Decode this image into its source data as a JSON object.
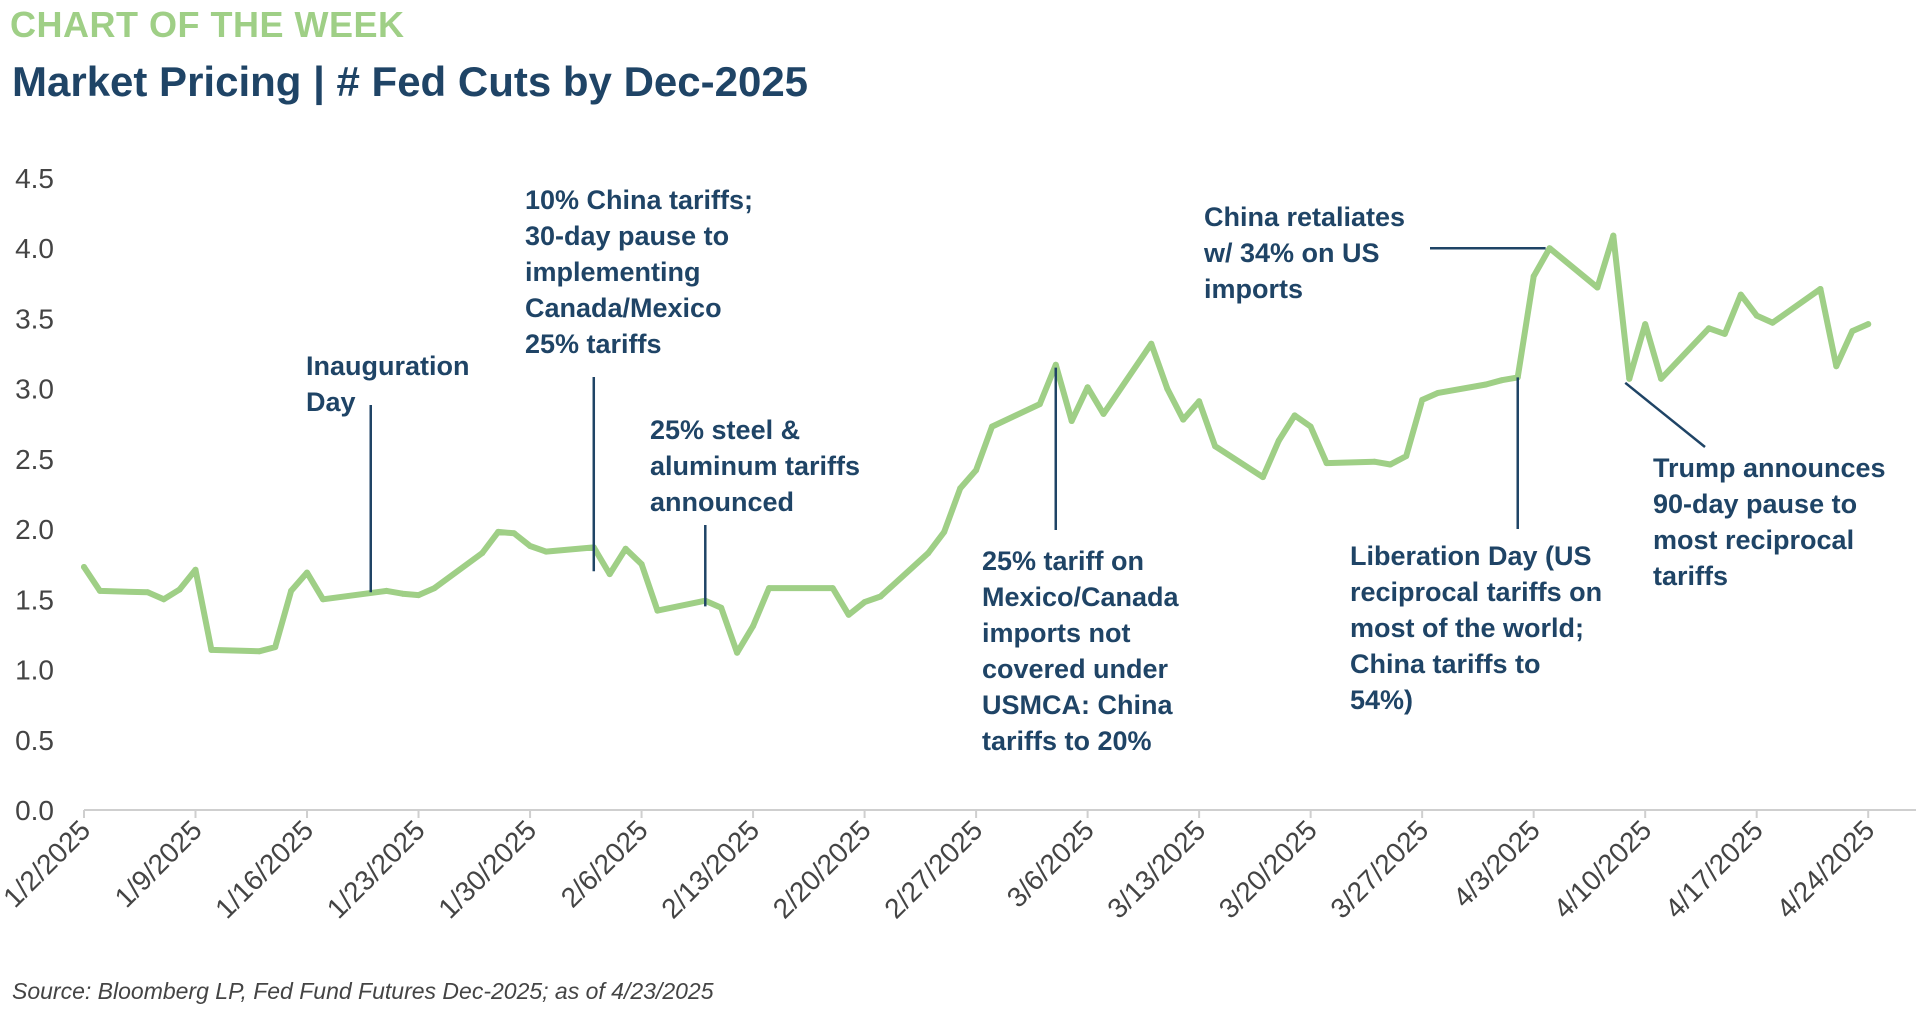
{
  "header": {
    "kicker": "CHART OF THE WEEK",
    "title": "Market Pricing | # Fed Cuts by Dec-2025"
  },
  "footer": {
    "source": "Source: Bloomberg LP, Fed Fund Futures Dec-2025; as of 4/23/2025"
  },
  "colors": {
    "line": "#9fcf86",
    "annotation": "#1f4466",
    "axis": "#cfcfcf"
  },
  "chart_data": {
    "type": "line",
    "title": "Market Pricing | # Fed Cuts by Dec-2025",
    "xlabel": "",
    "ylabel": "",
    "ylim": [
      0,
      4.5
    ],
    "yticks": [
      "0.0",
      "0.5",
      "1.0",
      "1.5",
      "2.0",
      "2.5",
      "3.0",
      "3.5",
      "4.0",
      "4.5"
    ],
    "xlim": [
      "2025-01-02",
      "2025-04-27"
    ],
    "xticks": [
      "1/2/2025",
      "1/9/2025",
      "1/16/2025",
      "1/23/2025",
      "1/30/2025",
      "2/6/2025",
      "2/13/2025",
      "2/20/2025",
      "2/27/2025",
      "3/6/2025",
      "3/13/2025",
      "3/20/2025",
      "3/27/2025",
      "4/3/2025",
      "4/10/2025",
      "4/17/2025",
      "4/24/2025"
    ],
    "grid": false,
    "legend": "none",
    "series": [
      {
        "points": [
          [
            "2025-01-02",
            1.73
          ],
          [
            "2025-01-03",
            1.56
          ],
          [
            "2025-01-06",
            1.55
          ],
          [
            "2025-01-07",
            1.5
          ],
          [
            "2025-01-08",
            1.57
          ],
          [
            "2025-01-09",
            1.71
          ],
          [
            "2025-01-10",
            1.14
          ],
          [
            "2025-01-13",
            1.13
          ],
          [
            "2025-01-14",
            1.16
          ],
          [
            "2025-01-15",
            1.56
          ],
          [
            "2025-01-16",
            1.69
          ],
          [
            "2025-01-17",
            1.5
          ],
          [
            "2025-01-21",
            1.56
          ],
          [
            "2025-01-22",
            1.54
          ],
          [
            "2025-01-23",
            1.53
          ],
          [
            "2025-01-24",
            1.58
          ],
          [
            "2025-01-27",
            1.83
          ],
          [
            "2025-01-28",
            1.98
          ],
          [
            "2025-01-29",
            1.97
          ],
          [
            "2025-01-30",
            1.88
          ],
          [
            "2025-01-31",
            1.84
          ],
          [
            "2025-02-03",
            1.87
          ],
          [
            "2025-02-04",
            1.68
          ],
          [
            "2025-02-05",
            1.86
          ],
          [
            "2025-02-06",
            1.75
          ],
          [
            "2025-02-07",
            1.42
          ],
          [
            "2025-02-10",
            1.49
          ],
          [
            "2025-02-11",
            1.44
          ],
          [
            "2025-02-12",
            1.12
          ],
          [
            "2025-02-13",
            1.31
          ],
          [
            "2025-02-14",
            1.58
          ],
          [
            "2025-02-18",
            1.58
          ],
          [
            "2025-02-19",
            1.39
          ],
          [
            "2025-02-20",
            1.48
          ],
          [
            "2025-02-21",
            1.52
          ],
          [
            "2025-02-24",
            1.83
          ],
          [
            "2025-02-25",
            1.98
          ],
          [
            "2025-02-26",
            2.29
          ],
          [
            "2025-02-27",
            2.42
          ],
          [
            "2025-02-28",
            2.73
          ],
          [
            "2025-03-03",
            2.89
          ],
          [
            "2025-03-04",
            3.17
          ],
          [
            "2025-03-05",
            2.77
          ],
          [
            "2025-03-06",
            3.01
          ],
          [
            "2025-03-07",
            2.82
          ],
          [
            "2025-03-10",
            3.32
          ],
          [
            "2025-03-11",
            3.0
          ],
          [
            "2025-03-12",
            2.78
          ],
          [
            "2025-03-13",
            2.91
          ],
          [
            "2025-03-14",
            2.59
          ],
          [
            "2025-03-17",
            2.37
          ],
          [
            "2025-03-18",
            2.63
          ],
          [
            "2025-03-19",
            2.81
          ],
          [
            "2025-03-20",
            2.73
          ],
          [
            "2025-03-21",
            2.47
          ],
          [
            "2025-03-24",
            2.48
          ],
          [
            "2025-03-25",
            2.46
          ],
          [
            "2025-03-26",
            2.52
          ],
          [
            "2025-03-27",
            2.92
          ],
          [
            "2025-03-28",
            2.97
          ],
          [
            "2025-03-31",
            3.03
          ],
          [
            "2025-04-01",
            3.06
          ],
          [
            "2025-04-02",
            3.08
          ],
          [
            "2025-04-03",
            3.8
          ],
          [
            "2025-04-04",
            4.0
          ],
          [
            "2025-04-07",
            3.72
          ],
          [
            "2025-04-08",
            4.09
          ],
          [
            "2025-04-09",
            3.07
          ],
          [
            "2025-04-10",
            3.46
          ],
          [
            "2025-04-11",
            3.07
          ],
          [
            "2025-04-14",
            3.43
          ],
          [
            "2025-04-15",
            3.39
          ],
          [
            "2025-04-16",
            3.67
          ],
          [
            "2025-04-17",
            3.52
          ],
          [
            "2025-04-18",
            3.47
          ],
          [
            "2025-04-21",
            3.71
          ],
          [
            "2025-04-22",
            3.16
          ],
          [
            "2025-04-23",
            3.41
          ],
          [
            "2025-04-24",
            3.46
          ]
        ]
      }
    ],
    "annotations": [
      {
        "lines": [
          "Inauguration",
          "Day"
        ],
        "date": "2025-01-20",
        "value": 1.55,
        "anchor": "below"
      },
      {
        "lines": [
          "10% China tariffs;",
          "30-day pause to",
          "implementing",
          "Canada/Mexico",
          "25% tariffs"
        ],
        "date": "2025-02-03",
        "value": 1.7,
        "anchor": "below"
      },
      {
        "lines": [
          "25% steel &",
          "aluminum tariffs",
          "announced"
        ],
        "date": "2025-02-10",
        "value": 1.45,
        "anchor": "below"
      },
      {
        "lines": [
          "25% tariff on",
          "Mexico/Canada",
          "imports not",
          "covered under",
          "USMCA: China",
          "tariffs to 20%"
        ],
        "date": "2025-03-04",
        "value": 3.15,
        "anchor": "above"
      },
      {
        "lines": [
          "China retaliates",
          "w/ 34% on US",
          "imports"
        ],
        "date": "2025-04-04",
        "value": 4.0,
        "anchor": "right"
      },
      {
        "lines": [
          "Liberation Day (US",
          "reciprocal tariffs on",
          "most of the world;",
          "China tariffs to",
          "54%)"
        ],
        "date": "2025-04-02",
        "value": 3.08,
        "anchor": "above"
      },
      {
        "lines": [
          "Trump announces",
          "90-day pause to",
          "most reciprocal",
          "tariffs"
        ],
        "date": "2025-04-09",
        "value": 3.07,
        "anchor": "above-right"
      }
    ]
  }
}
